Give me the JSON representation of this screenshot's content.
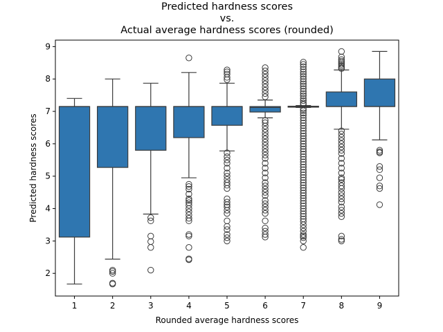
{
  "chart_data": {
    "type": "box",
    "title_lines": [
      "Predicted hardness scores",
      "vs.",
      "Actual average hardness scores (rounded)"
    ],
    "xlabel": "Rounded average hardness scores",
    "ylabel": "Predicted hardness scores",
    "categories": [
      "1",
      "2",
      "3",
      "4",
      "5",
      "6",
      "7",
      "8",
      "9"
    ],
    "ylim": [
      1.3,
      9.2
    ],
    "yticks": [
      "2",
      "3",
      "4",
      "5",
      "6",
      "7",
      "8",
      "9"
    ],
    "grid": false,
    "legend": "none",
    "box_color": "#2f76b0",
    "boxes": [
      {
        "category": "1",
        "whislo": 1.67,
        "q1": 3.12,
        "med": 7.15,
        "q3": 7.15,
        "whishi": 7.4,
        "fliers": []
      },
      {
        "category": "2",
        "whislo": 2.44,
        "q1": 5.27,
        "med": 7.15,
        "q3": 7.15,
        "whishi": 8.0,
        "fliers": [
          2.1,
          2.06,
          2.0,
          1.7,
          1.67
        ]
      },
      {
        "category": "3",
        "whislo": 3.83,
        "q1": 5.8,
        "med": 7.15,
        "q3": 7.15,
        "whishi": 7.87,
        "fliers": [
          3.72,
          3.62,
          3.15,
          2.98,
          2.8,
          2.1
        ]
      },
      {
        "category": "4",
        "whislo": 4.95,
        "q1": 6.19,
        "med": 7.15,
        "q3": 7.15,
        "whishi": 8.2,
        "fliers": [
          8.65,
          4.75,
          4.68,
          4.6,
          4.45,
          4.3,
          4.25,
          4.18,
          4.1,
          4.0,
          3.9,
          3.8,
          3.7,
          3.62,
          3.2,
          3.15,
          2.8,
          2.45,
          2.42
        ]
      },
      {
        "category": "5",
        "whislo": 5.78,
        "q1": 6.57,
        "med": 7.15,
        "q3": 7.15,
        "whishi": 7.87,
        "fliers": [
          8.28,
          8.22,
          8.15,
          8.05,
          7.98,
          5.72,
          5.6,
          5.5,
          5.4,
          5.25,
          5.1,
          5.0,
          4.9,
          4.8,
          4.72,
          4.62,
          4.3,
          4.2,
          4.12,
          4.05,
          3.95,
          3.85,
          3.62,
          3.45,
          3.35,
          3.2,
          3.1,
          3.0
        ]
      },
      {
        "category": "6",
        "whislo": 6.8,
        "q1": 6.98,
        "med": 7.12,
        "q3": 7.15,
        "whishi": 7.35,
        "fliers": [
          8.35,
          8.25,
          8.15,
          8.05,
          7.95,
          7.85,
          7.75,
          7.65,
          7.55,
          7.45,
          6.72,
          6.65,
          6.55,
          6.45,
          6.35,
          6.25,
          6.15,
          6.05,
          5.95,
          5.85,
          5.75,
          5.65,
          5.55,
          5.4,
          5.25,
          5.1,
          4.95,
          4.8,
          4.7,
          4.6,
          4.5,
          4.4,
          4.25,
          4.15,
          4.05,
          3.95,
          3.85,
          3.62,
          3.4,
          3.3,
          3.2,
          3.12
        ]
      },
      {
        "category": "7",
        "whislo": 7.12,
        "q1": 7.13,
        "med": 7.15,
        "q3": 7.16,
        "whishi": 7.18,
        "fliers": [
          8.52,
          8.45,
          8.38,
          8.3,
          8.22,
          8.15,
          8.08,
          8.0,
          7.92,
          7.85,
          7.78,
          7.7,
          7.62,
          7.55,
          7.48,
          7.4,
          7.33,
          7.26,
          7.21,
          7.08,
          7.02,
          6.95,
          6.88,
          6.8,
          6.72,
          6.64,
          6.56,
          6.48,
          6.4,
          6.32,
          6.24,
          6.16,
          6.08,
          6.0,
          5.92,
          5.84,
          5.76,
          5.68,
          5.6,
          5.52,
          5.44,
          5.36,
          5.28,
          5.2,
          5.12,
          5.04,
          4.96,
          4.88,
          4.8,
          4.72,
          4.64,
          4.56,
          4.48,
          4.4,
          4.32,
          4.24,
          4.16,
          4.08,
          4.0,
          3.92,
          3.84,
          3.76,
          3.68,
          3.6,
          3.5,
          3.4,
          3.3,
          3.2,
          3.15,
          3.1,
          3.0,
          2.8
        ]
      },
      {
        "category": "8",
        "whislo": 6.45,
        "q1": 7.15,
        "med": 7.15,
        "q3": 7.6,
        "whishi": 8.28,
        "fliers": [
          8.85,
          8.68,
          8.6,
          8.55,
          8.5,
          8.45,
          8.4,
          8.35,
          8.32,
          6.4,
          6.3,
          6.2,
          6.1,
          6.0,
          5.9,
          5.8,
          5.7,
          5.55,
          5.4,
          5.25,
          5.1,
          4.95,
          4.9,
          4.8,
          4.7,
          4.62,
          4.5,
          4.4,
          4.3,
          4.2,
          4.05,
          3.95,
          3.85,
          3.75,
          3.15,
          3.05,
          3.0
        ]
      },
      {
        "category": "9",
        "whislo": 6.12,
        "q1": 7.15,
        "med": 7.15,
        "q3": 8.0,
        "whishi": 8.85,
        "fliers": [
          5.8,
          5.75,
          5.72,
          5.3,
          5.2,
          4.95,
          4.7,
          4.62,
          4.12
        ]
      }
    ]
  }
}
